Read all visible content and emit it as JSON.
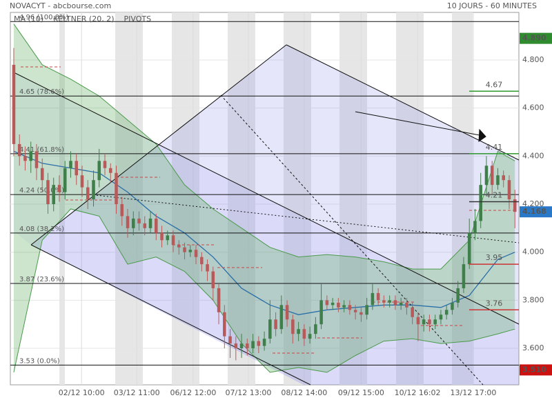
{
  "chart_data": {
    "type": "candlestick",
    "title": "NOVACYT - abcbourse.com",
    "subtitle": "10 JOURS - 60 MINUTES",
    "indicators": [
      {
        "name": "MA (10)",
        "color": "#2a6fa8"
      },
      {
        "name": "KELTNER (20, 2)",
        "color": "#4a9a4a"
      },
      {
        "name": "PIVOTS",
        "color": "#555555"
      }
    ],
    "xlim": [
      -0.6,
      88.7
    ],
    "ylim": [
      3.448,
      4.998
    ],
    "yticks": [
      {
        "value": 3.6,
        "label": "3.600"
      },
      {
        "value": 3.8,
        "label": "3.800"
      },
      {
        "value": 4.0,
        "label": "4.000"
      },
      {
        "value": 4.2,
        "label": "4.200"
      },
      {
        "value": 4.4,
        "label": "4.400"
      },
      {
        "value": 4.6,
        "label": "4.600"
      },
      {
        "value": 4.8,
        "label": "4.800"
      }
    ],
    "xticks": [
      {
        "value": 11.9,
        "label": "02/12 10:00"
      },
      {
        "value": 21.6,
        "label": "03/12 11:00"
      },
      {
        "value": 31.5,
        "label": "06/12 12:00"
      },
      {
        "value": 41.2,
        "label": "07/12 13:00"
      },
      {
        "value": 51,
        "label": "08/12 14:00"
      },
      {
        "value": 61,
        "label": "09/12 15:00"
      },
      {
        "value": 70.9,
        "label": "10/12 16:02"
      },
      {
        "value": 80.7,
        "label": "13/12 17:00"
      }
    ],
    "grid": true,
    "up_color": "#3f7f4a",
    "down_color": "#b85a5a",
    "x": [
      0,
      1,
      2,
      3,
      4,
      5,
      6,
      7,
      8,
      9,
      10,
      11,
      12,
      13,
      14,
      15,
      16,
      17,
      18,
      19,
      20,
      21,
      22,
      23,
      24,
      25,
      26,
      27,
      28,
      29,
      30,
      31,
      32,
      33,
      34,
      35,
      36,
      37,
      38,
      39,
      40,
      41,
      42,
      43,
      44,
      45,
      46,
      47,
      48,
      49,
      50,
      51,
      52,
      53,
      54,
      55,
      56,
      57,
      58,
      59,
      60,
      61,
      62,
      63,
      64,
      65,
      66,
      67,
      68,
      69,
      70,
      71,
      72,
      73,
      74,
      75,
      76,
      77,
      78,
      79,
      80,
      81,
      82,
      83,
      84,
      85,
      86,
      87,
      88
    ],
    "open": [
      4.78,
      4.45,
      4.4,
      4.38,
      4.42,
      4.35,
      4.3,
      4.2,
      4.28,
      4.25,
      4.35,
      4.38,
      4.32,
      4.27,
      4.22,
      4.3,
      4.38,
      4.35,
      4.33,
      4.2,
      4.15,
      4.1,
      4.14,
      4.12,
      4.1,
      4.14,
      4.08,
      4.05,
      4.07,
      4.03,
      4.02,
      4.0,
      4.01,
      3.98,
      3.95,
      3.92,
      3.85,
      3.75,
      3.65,
      3.62,
      3.6,
      3.62,
      3.6,
      3.63,
      3.61,
      3.64,
      3.72,
      3.68,
      3.78,
      3.72,
      3.66,
      3.68,
      3.64,
      3.66,
      3.7,
      3.8,
      3.78,
      3.79,
      3.77,
      3.78,
      3.76,
      3.75,
      3.74,
      3.78,
      3.83,
      3.8,
      3.79,
      3.8,
      3.78,
      3.79,
      3.77,
      3.73,
      3.7,
      3.72,
      3.7,
      3.72,
      3.74,
      3.76,
      3.79,
      3.85,
      3.95,
      4.08,
      4.13,
      4.28,
      4.36,
      4.28,
      4.32,
      4.3,
      4.22
    ],
    "high": [
      4.85,
      4.49,
      4.44,
      4.46,
      4.45,
      4.39,
      4.33,
      4.31,
      4.32,
      4.38,
      4.42,
      4.41,
      4.36,
      4.3,
      4.34,
      4.43,
      4.41,
      4.37,
      4.36,
      4.23,
      4.18,
      4.17,
      4.17,
      4.15,
      4.17,
      4.16,
      4.11,
      4.09,
      4.09,
      4.05,
      4.04,
      4.03,
      4.03,
      4.0,
      3.97,
      3.94,
      3.87,
      3.78,
      3.68,
      3.65,
      3.66,
      3.64,
      3.66,
      3.65,
      3.67,
      3.8,
      3.75,
      3.82,
      3.8,
      3.74,
      3.71,
      3.7,
      3.69,
      3.73,
      3.87,
      3.82,
      3.81,
      3.81,
      3.8,
      3.8,
      3.78,
      3.77,
      3.81,
      3.87,
      3.85,
      3.82,
      3.82,
      3.82,
      3.81,
      3.81,
      3.79,
      3.75,
      3.74,
      3.74,
      3.74,
      3.76,
      3.78,
      3.81,
      3.88,
      3.98,
      4.14,
      4.18,
      4.33,
      4.4,
      4.38,
      4.35,
      4.34,
      4.32,
      4.26
    ],
    "low": [
      4.4,
      4.36,
      4.34,
      4.33,
      4.3,
      4.25,
      4.16,
      4.17,
      4.21,
      4.22,
      4.31,
      4.28,
      4.23,
      4.18,
      4.19,
      4.27,
      4.32,
      4.29,
      4.16,
      4.11,
      4.06,
      4.07,
      4.09,
      4.07,
      4.08,
      4.05,
      4.02,
      4.03,
      4.0,
      3.99,
      3.97,
      3.98,
      3.95,
      3.92,
      3.88,
      3.8,
      3.7,
      3.6,
      3.56,
      3.55,
      3.56,
      3.57,
      3.58,
      3.58,
      3.59,
      3.62,
      3.65,
      3.66,
      3.69,
      3.62,
      3.63,
      3.61,
      3.62,
      3.64,
      3.68,
      3.76,
      3.76,
      3.75,
      3.75,
      3.74,
      3.72,
      3.71,
      3.72,
      3.76,
      3.78,
      3.77,
      3.77,
      3.76,
      3.76,
      3.74,
      3.7,
      3.63,
      3.67,
      3.67,
      3.68,
      3.7,
      3.72,
      3.74,
      3.77,
      3.83,
      3.93,
      4.05,
      4.1,
      4.24,
      4.24,
      4.26,
      4.27,
      4.18,
      4.1
    ],
    "close": [
      4.45,
      4.4,
      4.38,
      4.42,
      4.35,
      4.3,
      4.2,
      4.28,
      4.25,
      4.35,
      4.38,
      4.32,
      4.27,
      4.22,
      4.3,
      4.38,
      4.35,
      4.33,
      4.2,
      4.15,
      4.1,
      4.14,
      4.12,
      4.1,
      4.14,
      4.08,
      4.05,
      4.07,
      4.03,
      4.02,
      4.0,
      4.01,
      3.98,
      3.95,
      3.92,
      3.85,
      3.75,
      3.65,
      3.62,
      3.6,
      3.62,
      3.6,
      3.63,
      3.61,
      3.64,
      3.72,
      3.68,
      3.78,
      3.72,
      3.66,
      3.68,
      3.64,
      3.66,
      3.7,
      3.8,
      3.78,
      3.79,
      3.77,
      3.78,
      3.76,
      3.75,
      3.74,
      3.78,
      3.83,
      3.8,
      3.79,
      3.8,
      3.78,
      3.79,
      3.77,
      3.73,
      3.7,
      3.72,
      3.7,
      3.72,
      3.74,
      3.76,
      3.79,
      3.85,
      3.95,
      4.08,
      4.13,
      4.28,
      4.36,
      4.28,
      4.32,
      4.3,
      4.22,
      4.168
    ],
    "keltner": {
      "x": [
        0,
        5,
        10,
        15,
        20,
        25,
        30,
        35,
        40,
        45,
        50,
        55,
        60,
        65,
        70,
        75,
        80,
        85,
        88
      ],
      "upper": [
        4.95,
        4.78,
        4.72,
        4.65,
        4.55,
        4.45,
        4.28,
        4.18,
        4.1,
        4.02,
        3.98,
        3.99,
        3.98,
        3.96,
        3.93,
        3.93,
        4.05,
        4.42,
        4.38
      ],
      "middle": [
        4.42,
        4.37,
        4.35,
        4.33,
        4.25,
        4.15,
        4.08,
        3.98,
        3.85,
        3.78,
        3.74,
        3.76,
        3.77,
        3.78,
        3.78,
        3.77,
        3.82,
        3.97,
        4.0
      ],
      "lower": [
        3.5,
        4.05,
        4.18,
        4.15,
        3.95,
        3.98,
        3.92,
        3.8,
        3.62,
        3.5,
        3.52,
        3.5,
        3.57,
        3.63,
        3.64,
        3.62,
        3.63,
        3.66,
        3.68
      ]
    },
    "fibonacci": [
      {
        "value": 3.53,
        "label": "3.53 (0.0%)"
      },
      {
        "value": 3.87,
        "label": "3.87 (23.6%)"
      },
      {
        "value": 4.08,
        "label": "4.08 (38.2%)"
      },
      {
        "value": 4.24,
        "label": "4.24 (50.0%)"
      },
      {
        "value": 4.41,
        "label": "4.41 (61.8%)"
      },
      {
        "value": 4.65,
        "label": "4.65 (78.6%)"
      },
      {
        "value": 4.96,
        "label": "4.96 (100.0%)"
      }
    ],
    "pivots": [
      {
        "value": 4.67,
        "color": "#2e9a2e"
      },
      {
        "value": 4.41,
        "color": "#2e9a2e"
      },
      {
        "value": 4.21,
        "color": "#333333"
      },
      {
        "value": 3.95,
        "color": "#cc3333"
      },
      {
        "value": 3.76,
        "color": "#cc3333"
      }
    ],
    "markers": [
      {
        "value": 4.89,
        "label": "4.890",
        "color": "#2e8b2e"
      },
      {
        "value": 4.168,
        "label": "4.168",
        "color": "#2a78c8"
      },
      {
        "value": 3.51,
        "label": "3.510",
        "color": "#cc1111"
      }
    ]
  }
}
